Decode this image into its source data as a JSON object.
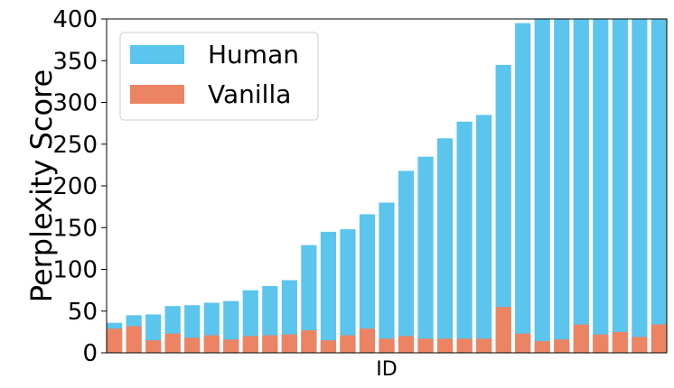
{
  "chart_data": {
    "type": "bar",
    "xlabel": "ID",
    "ylabel": "Perplexity Score",
    "ylim": [
      0,
      400
    ],
    "yticks": [
      0,
      50,
      100,
      150,
      200,
      250,
      300,
      350,
      400
    ],
    "grid": false,
    "legend_position": "top-left",
    "series": [
      {
        "name": "Human",
        "color": "#5bc5ed",
        "values": [
          36,
          45,
          46,
          56,
          57,
          60,
          62,
          75,
          80,
          87,
          129,
          145,
          148,
          166,
          180,
          218,
          235,
          257,
          277,
          285,
          345,
          395,
          400,
          400,
          400,
          400,
          400,
          400,
          400
        ]
      },
      {
        "name": "Vanilla",
        "color": "#ec8463",
        "values": [
          29,
          32,
          15,
          23,
          18,
          21,
          16,
          20,
          21,
          22,
          27,
          15,
          21,
          29,
          17,
          20,
          17,
          17,
          17,
          17,
          55,
          23,
          14,
          16,
          34,
          22,
          25,
          19,
          34
        ]
      }
    ]
  }
}
